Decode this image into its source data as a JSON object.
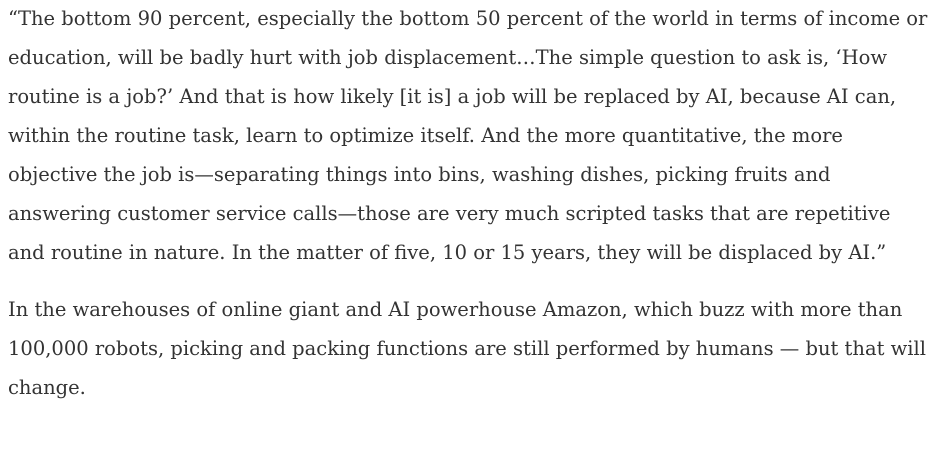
{
  "article": {
    "paragraphs": [
      "“The bottom 90 percent, especially the bottom 50 percent of the world in terms of income or education, will be badly hurt with job displacement…The simple question to ask is, ‘How routine is a job?’ And that is how likely [it is] a job will be replaced by AI, because AI can, within the routine task, learn to optimize itself. And the more quantitative, the more objective the job is—separating things into bins, washing dishes, picking fruits and answering customer service calls—those are very much scripted tasks that are repetitive and routine in nature. In the matter of five, 10 or 15 years, they will be displaced by AI.”",
      "In the warehouses of online giant and AI powerhouse Amazon, which buzz with more than 100,000 robots, picking and packing functions are still performed by humans — but that will change."
    ]
  }
}
